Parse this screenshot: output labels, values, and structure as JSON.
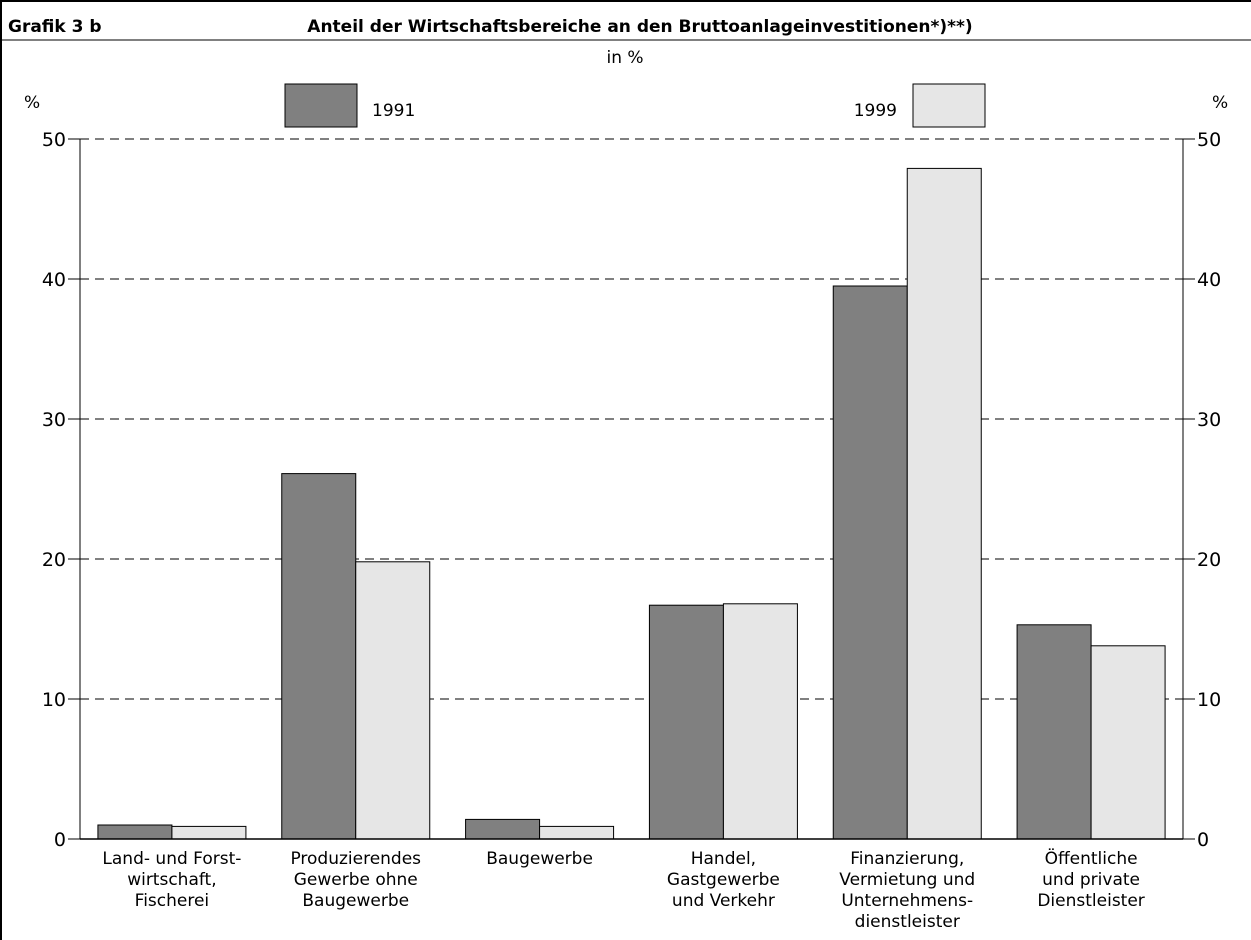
{
  "header": {
    "label": "Grafik 3 b",
    "title": "Anteil der Wirtschaftsbereiche an den Bruttoanlageinvestitionen*)**)",
    "subtitle": "in %"
  },
  "axis_unit_left": "%",
  "axis_unit_right": "%",
  "colors": {
    "series_1991": "#808080",
    "series_1999": "#e6e6e6",
    "grid": "#000000"
  },
  "chart_data": {
    "type": "bar",
    "title": "Anteil der Wirtschaftsbereiche an den Bruttoanlageinvestitionen*)**)",
    "subtitle": "in %",
    "categories": [
      [
        "Land- und Forst-",
        "wirtschaft,",
        "Fischerei"
      ],
      [
        "Produzierendes",
        "Gewerbe ohne",
        "Baugewerbe"
      ],
      [
        "Baugewerbe"
      ],
      [
        "Handel,",
        "Gastgewerbe",
        "und Verkehr"
      ],
      [
        "Finanzierung,",
        "Vermietung und",
        "Unternehmens-",
        "dienstleister"
      ],
      [
        "Öffentliche",
        "und private",
        "Dienstleister"
      ]
    ],
    "series": [
      {
        "name": "1991",
        "values": [
          1.0,
          26.1,
          1.4,
          16.7,
          39.5,
          15.3
        ]
      },
      {
        "name": "1999",
        "values": [
          0.9,
          19.8,
          0.9,
          16.8,
          47.9,
          13.8
        ]
      }
    ],
    "ylim": [
      0,
      50
    ],
    "yticks": [
      "0",
      "10",
      "20",
      "30",
      "40",
      "50"
    ],
    "grid": "dashed horizontal",
    "legend": "top"
  }
}
